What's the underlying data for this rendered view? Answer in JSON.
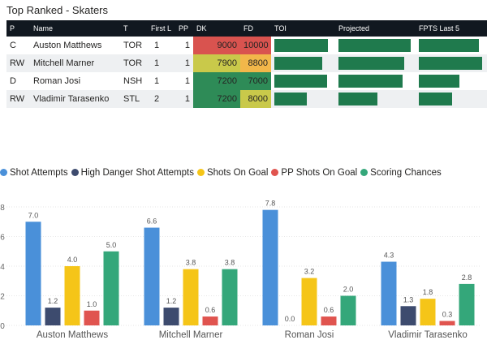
{
  "page_title": "Top Ranked - Skaters",
  "table": {
    "columns": [
      "P",
      "Name",
      "T",
      "First L",
      "PP",
      "DK",
      "FD",
      "TOI",
      "Projected",
      "FPTS Last 5"
    ],
    "rows": [
      {
        "pos": "C",
        "name": "Auston Matthews",
        "team": "TOR",
        "first_l": "1",
        "pp": "1",
        "dk": "9000",
        "fd": "10000",
        "dk_color": "#d9534f",
        "fd_color": "#d9534f",
        "toi": 0.93,
        "projected": 0.98,
        "fpts_last5": 0.93
      },
      {
        "pos": "RW",
        "name": "Mitchell Marner",
        "team": "TOR",
        "first_l": "1",
        "pp": "1",
        "dk": "7900",
        "fd": "8800",
        "dk_color": "#c9c94a",
        "fd_color": "#f2b74a",
        "toi": 0.83,
        "projected": 0.89,
        "fpts_last5": 0.98
      },
      {
        "pos": "D",
        "name": "Roman Josi",
        "team": "NSH",
        "first_l": "1",
        "pp": "1",
        "dk": "7200",
        "fd": "7000",
        "dk_color": "#2e8b57",
        "fd_color": "#2e8b57",
        "toi": 0.92,
        "projected": 0.87,
        "fpts_last5": 0.62
      },
      {
        "pos": "RW",
        "name": "Vladimir Tarasenko",
        "team": "STL",
        "first_l": "2",
        "pp": "1",
        "dk": "7200",
        "fd": "8000",
        "dk_color": "#2e8b57",
        "fd_color": "#c9c94a",
        "toi": 0.56,
        "projected": 0.53,
        "fpts_last5": 0.51
      }
    ]
  },
  "chart_data": {
    "type": "bar",
    "categories": [
      "Auston Matthews",
      "Mitchell Marner",
      "Roman Josi",
      "Vladimir Tarasenko"
    ],
    "series": [
      {
        "name": "Shot Attempts",
        "color": "#4a90d9",
        "values": [
          7.0,
          6.6,
          7.8,
          4.3
        ]
      },
      {
        "name": "High Danger Shot Attempts",
        "color": "#3d4b6e",
        "values": [
          1.2,
          1.2,
          0.0,
          1.3
        ]
      },
      {
        "name": "Shots On Goal",
        "color": "#f5c518",
        "values": [
          4.0,
          3.8,
          3.2,
          1.8
        ]
      },
      {
        "name": "PP Shots On Goal",
        "color": "#e0544f",
        "values": [
          1.0,
          0.6,
          0.6,
          0.3
        ]
      },
      {
        "name": "Scoring Chances",
        "color": "#34a77a",
        "values": [
          5.0,
          3.8,
          2.0,
          2.8
        ]
      }
    ],
    "data_label_text": [
      [
        "7.0",
        "6.6",
        "7.8",
        "4.3"
      ],
      [
        "1.2",
        "1.2",
        "0.0",
        "1.3"
      ],
      [
        "4.0",
        "3.8",
        "3.2",
        "1.8"
      ],
      [
        "1.0",
        "0.6",
        "0.6",
        "0.3"
      ],
      [
        "5.0",
        "3.8",
        "2.0",
        "2.8"
      ]
    ],
    "y_ticks": [
      0,
      2,
      4,
      6,
      8
    ],
    "y_tick_labels": [
      "0",
      "2",
      "4",
      "6",
      "8"
    ],
    "ylim": [
      0,
      8
    ],
    "legend_position": "top-left",
    "gridlines": true
  }
}
